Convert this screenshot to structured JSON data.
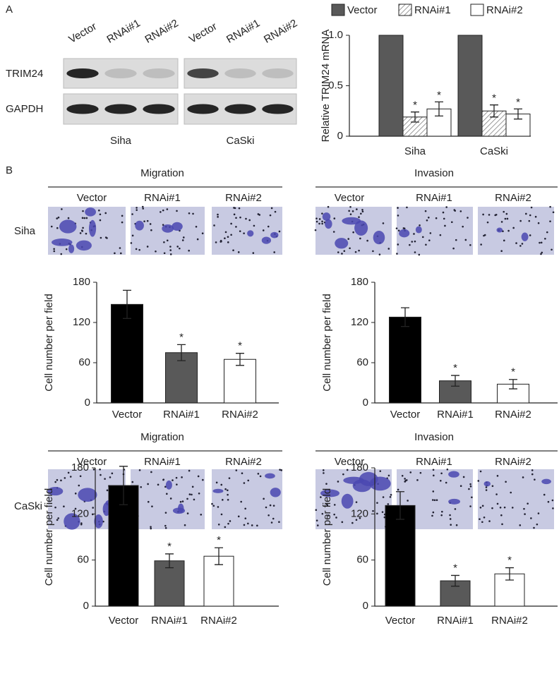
{
  "panel_labels": [
    "A",
    "B"
  ],
  "blot": {
    "lanes": [
      "Vector",
      "RNAi#1",
      "RNAi#2"
    ],
    "rows": [
      "TRIM24",
      "GAPDH"
    ],
    "groups": [
      "Siha",
      "CaSki"
    ]
  },
  "micrographs": {
    "rows": [
      "Siha",
      "CaSki"
    ],
    "assays": [
      "Migration",
      "Invasion"
    ],
    "conditions": [
      "Vector",
      "RNAi#1",
      "RNAi#2"
    ]
  },
  "chart_data": [
    {
      "type": "grouped_bar",
      "ylabel": "Relative TRIM24 mRNA",
      "categories": [
        "Siha",
        "CaSki"
      ],
      "series": [
        {
          "name": "Vector",
          "color": "#595959",
          "values": [
            1,
            1
          ]
        },
        {
          "name": "RNAi#1",
          "color": "hatch",
          "values": [
            0.19,
            0.25
          ],
          "errors": [
            0.05,
            0.06
          ],
          "annotations": [
            "*",
            "*"
          ]
        },
        {
          "name": "RNAi#2",
          "color": "#ffffff",
          "values": [
            0.27,
            0.22
          ],
          "errors": [
            0.07,
            0.05
          ],
          "annotations": [
            "*",
            "*"
          ]
        }
      ],
      "ylim": [
        0,
        1
      ],
      "yticks": [
        0,
        0.5,
        {
          "value": 1,
          "label": "1.0"
        }
      ],
      "legend": "top"
    },
    {
      "type": "bar",
      "ylabel": "Cell number per field",
      "categories": [
        "Vector",
        "RNAi#1",
        "RNAi#2"
      ],
      "colors": [
        "#000000",
        "#595959",
        "#ffffff"
      ],
      "values": [
        147,
        75,
        65
      ],
      "errors": [
        21,
        12,
        9
      ],
      "annotations": [
        null,
        "*",
        "*"
      ],
      "ylim": [
        0,
        180
      ],
      "yticks": [
        0,
        60,
        120,
        180
      ]
    },
    {
      "type": "bar",
      "ylabel": "Cell number per field",
      "categories": [
        "Vector",
        "RNAi#1",
        "RNAi#2"
      ],
      "colors": [
        "#000000",
        "#595959",
        "#ffffff"
      ],
      "values": [
        128,
        33,
        28
      ],
      "errors": [
        14,
        8,
        7
      ],
      "annotations": [
        null,
        "*",
        "*"
      ],
      "ylim": [
        0,
        180
      ],
      "yticks": [
        0,
        60,
        120,
        180
      ]
    },
    {
      "type": "bar",
      "ylabel": "Cell number per field",
      "categories": [
        "Vector",
        "RNAi#1",
        "RNAi#2"
      ],
      "colors": [
        "#000000",
        "#595959",
        "#ffffff"
      ],
      "values": [
        157,
        59,
        65
      ],
      "errors": [
        25,
        9,
        11
      ],
      "annotations": [
        null,
        "*",
        "*"
      ],
      "ylim": [
        0,
        180
      ],
      "yticks": [
        0,
        60,
        120,
        180
      ]
    },
    {
      "type": "bar",
      "ylabel": "Cell number per field",
      "categories": [
        "Vector",
        "RNAi#1",
        "RNAi#2"
      ],
      "colors": [
        "#000000",
        "#595959",
        "#ffffff"
      ],
      "values": [
        131,
        33,
        42
      ],
      "errors": [
        18,
        7,
        8
      ],
      "annotations": [
        null,
        "*",
        "*"
      ],
      "ylim": [
        0,
        180
      ],
      "yticks": [
        0,
        60,
        120,
        180
      ]
    }
  ]
}
